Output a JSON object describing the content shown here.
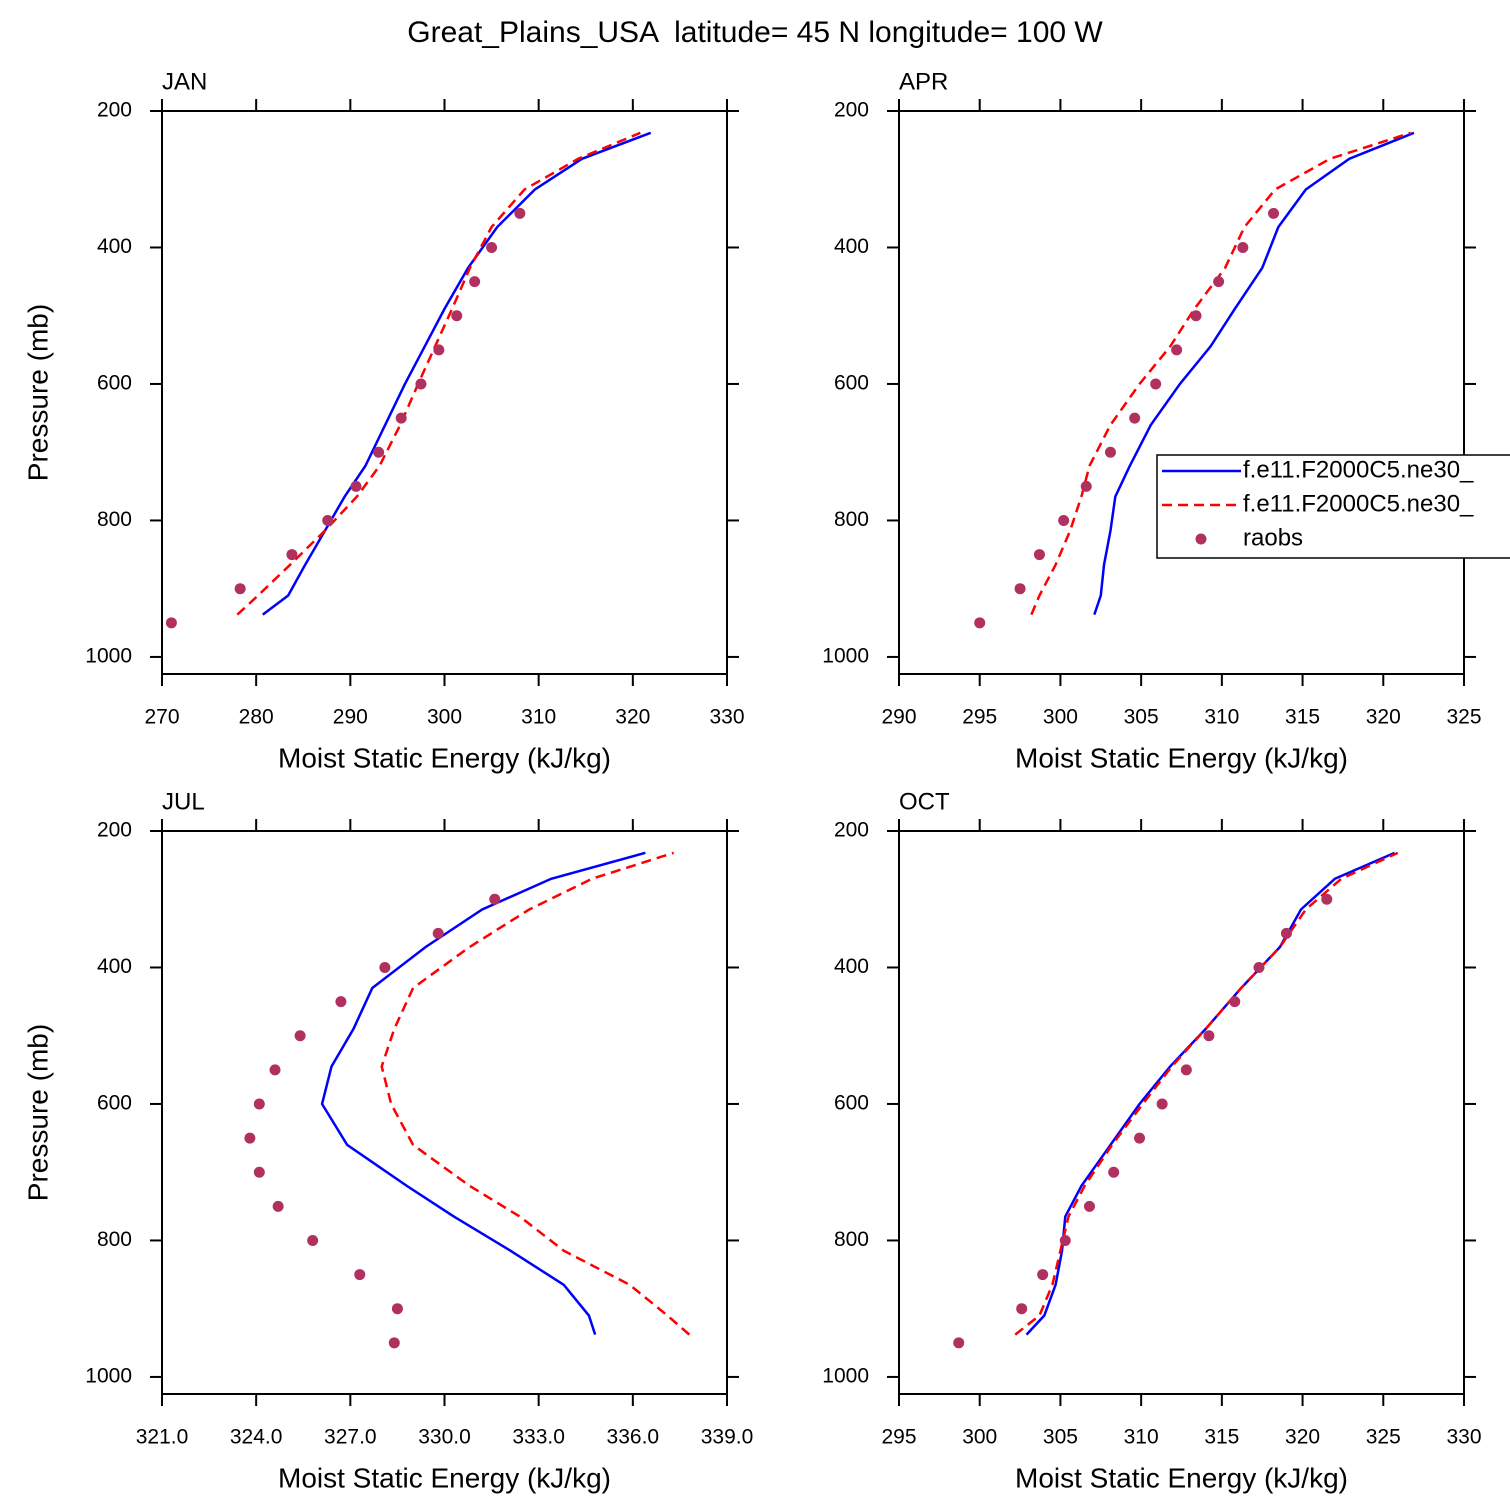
{
  "title": "Great_Plains_USA  latitude= 45 N longitude= 100 W",
  "chart_data": [
    {
      "type": "line",
      "title": "JAN",
      "xlabel": "Moist Static Energy (kJ/kg)",
      "ylabel": "Pressure (mb)",
      "xlim": [
        270,
        330
      ],
      "xticks": [
        270,
        280,
        290,
        300,
        310,
        320,
        330
      ],
      "ylim": [
        1025,
        200
      ],
      "yticks": [
        200,
        400,
        600,
        800,
        1000
      ],
      "series": [
        {
          "color": "#0000ff",
          "line_style": "solid",
          "x": [
            280.7,
            283.4,
            285.2,
            287.3,
            289.4,
            291.6,
            293.7,
            295.8,
            297.9,
            300.0,
            302.5,
            305.6,
            309.6,
            314.6,
            321.9
          ],
          "values": [
            938,
            910,
            865,
            815,
            765,
            720,
            660,
            600,
            545,
            490,
            430,
            370,
            315,
            270,
            232
          ]
        },
        {
          "color": "#ff0000",
          "line_style": "dashed",
          "x": [
            278.0,
            280.2,
            283.6,
            287.3,
            290.7,
            293.1,
            295.3,
            297.2,
            299.0,
            300.8,
            302.7,
            305.0,
            308.5,
            314.2,
            320.8
          ],
          "values": [
            938,
            910,
            865,
            815,
            765,
            720,
            660,
            600,
            545,
            490,
            430,
            370,
            315,
            270,
            232
          ]
        },
        {
          "color": "#b03060",
          "line_style": "none",
          "marker": "circle",
          "x": [
            271.0,
            278.3,
            283.8,
            287.6,
            290.6,
            293.0,
            295.4,
            297.5,
            299.4,
            301.3,
            303.2,
            305.0,
            308.0
          ],
          "values": [
            950,
            900,
            850,
            800,
            750,
            700,
            650,
            600,
            550,
            500,
            450,
            400,
            350
          ]
        }
      ]
    },
    {
      "type": "line",
      "title": "APR",
      "xlabel": "Moist Static Energy (kJ/kg)",
      "legend": "right",
      "xlim": [
        290,
        325
      ],
      "xticks": [
        290,
        295,
        300,
        305,
        310,
        315,
        320,
        325
      ],
      "ylim": [
        1025,
        200
      ],
      "yticks": [
        200,
        400,
        600,
        800,
        1000
      ],
      "series": [
        {
          "name": "f.e11.F2000C5.ne30_",
          "color": "#0000ff",
          "line_style": "solid",
          "x": [
            302.1,
            302.5,
            302.7,
            303.1,
            303.4,
            304.3,
            305.6,
            307.4,
            309.3,
            310.8,
            312.5,
            313.5,
            315.2,
            317.9,
            321.9
          ],
          "values": [
            938,
            910,
            865,
            815,
            765,
            720,
            660,
            600,
            545,
            490,
            430,
            370,
            315,
            270,
            232
          ]
        },
        {
          "name": "f.e11.F2000C5.ne30_",
          "color": "#ff0000",
          "line_style": "dashed",
          "x": [
            298.2,
            298.7,
            299.7,
            300.6,
            301.3,
            301.8,
            303.1,
            304.9,
            306.8,
            308.3,
            310.2,
            311.4,
            313.3,
            316.7,
            321.7
          ],
          "values": [
            938,
            910,
            865,
            815,
            765,
            720,
            660,
            600,
            545,
            490,
            430,
            370,
            315,
            270,
            232
          ]
        },
        {
          "name": "raobs",
          "color": "#b03060",
          "line_style": "none",
          "marker": "circle",
          "x": [
            295.0,
            297.5,
            298.7,
            300.2,
            301.6,
            303.1,
            304.6,
            305.9,
            307.2,
            308.4,
            309.8,
            311.3,
            313.2
          ],
          "values": [
            950,
            900,
            850,
            800,
            750,
            700,
            650,
            600,
            550,
            500,
            450,
            400,
            350
          ]
        }
      ]
    },
    {
      "type": "line",
      "title": "JUL",
      "xlabel": "Moist Static Energy (kJ/kg)",
      "ylabel": "Pressure (mb)",
      "xlim": [
        321,
        339
      ],
      "xticks": [
        {
          "value": 321,
          "label": "321.0"
        },
        {
          "value": 324,
          "label": "324.0"
        },
        {
          "value": 327,
          "label": "327.0"
        },
        {
          "value": 330,
          "label": "330.0"
        },
        {
          "value": 333,
          "label": "333.0"
        },
        {
          "value": 336,
          "label": "336.0"
        },
        {
          "value": 339,
          "label": "339.0"
        }
      ],
      "ylim": [
        1025,
        200
      ],
      "yticks": [
        200,
        400,
        600,
        800,
        1000
      ],
      "series": [
        {
          "color": "#0000ff",
          "line_style": "solid",
          "x": [
            334.8,
            334.6,
            333.8,
            332.1,
            330.3,
            328.8,
            326.9,
            326.1,
            326.4,
            327.1,
            327.7,
            329.4,
            331.2,
            333.4,
            336.4
          ],
          "values": [
            938,
            910,
            865,
            815,
            765,
            720,
            660,
            600,
            545,
            490,
            430,
            370,
            315,
            270,
            232
          ]
        },
        {
          "color": "#ff0000",
          "line_style": "dashed",
          "x": [
            337.8,
            337.1,
            335.9,
            333.8,
            332.4,
            330.8,
            329.0,
            328.3,
            328.0,
            328.4,
            329.0,
            330.8,
            332.7,
            334.7,
            337.3
          ],
          "values": [
            938,
            910,
            865,
            815,
            765,
            720,
            660,
            600,
            545,
            490,
            430,
            370,
            315,
            270,
            232
          ]
        },
        {
          "color": "#b03060",
          "line_style": "none",
          "marker": "circle",
          "x": [
            328.4,
            328.5,
            327.3,
            325.8,
            324.7,
            324.1,
            323.8,
            324.1,
            324.6,
            325.4,
            326.7,
            328.1,
            329.8,
            331.6
          ],
          "values": [
            950,
            900,
            850,
            800,
            750,
            700,
            650,
            600,
            550,
            500,
            450,
            400,
            350,
            300
          ]
        }
      ]
    },
    {
      "type": "line",
      "title": "OCT",
      "xlabel": "Moist Static Energy (kJ/kg)",
      "xlim": [
        295,
        330
      ],
      "xticks": [
        295,
        300,
        305,
        310,
        315,
        320,
        325,
        330
      ],
      "ylim": [
        1025,
        200
      ],
      "yticks": [
        200,
        400,
        600,
        800,
        1000
      ],
      "series": [
        {
          "color": "#0000ff",
          "line_style": "solid",
          "x": [
            302.9,
            304.0,
            304.7,
            305.1,
            305.3,
            306.3,
            308.1,
            309.9,
            311.8,
            314.0,
            316.2,
            318.6,
            319.9,
            322.0,
            325.7
          ],
          "values": [
            938,
            910,
            865,
            815,
            765,
            720,
            660,
            600,
            545,
            490,
            430,
            370,
            315,
            270,
            232
          ]
        },
        {
          "color": "#ff0000",
          "line_style": "dashed",
          "x": [
            302.2,
            303.7,
            304.5,
            305.0,
            305.5,
            306.5,
            308.2,
            310.1,
            311.9,
            314.0,
            316.2,
            318.6,
            320.2,
            322.4,
            325.9
          ],
          "values": [
            938,
            910,
            865,
            815,
            765,
            720,
            660,
            600,
            545,
            490,
            430,
            370,
            315,
            270,
            232
          ]
        },
        {
          "color": "#b03060",
          "line_style": "none",
          "marker": "circle",
          "x": [
            298.7,
            302.6,
            303.9,
            305.3,
            306.8,
            308.3,
            309.9,
            311.3,
            312.8,
            314.2,
            315.8,
            317.3,
            319.0,
            321.5
          ],
          "values": [
            950,
            900,
            850,
            800,
            750,
            700,
            650,
            600,
            550,
            500,
            450,
            400,
            350,
            300
          ]
        }
      ]
    }
  ]
}
